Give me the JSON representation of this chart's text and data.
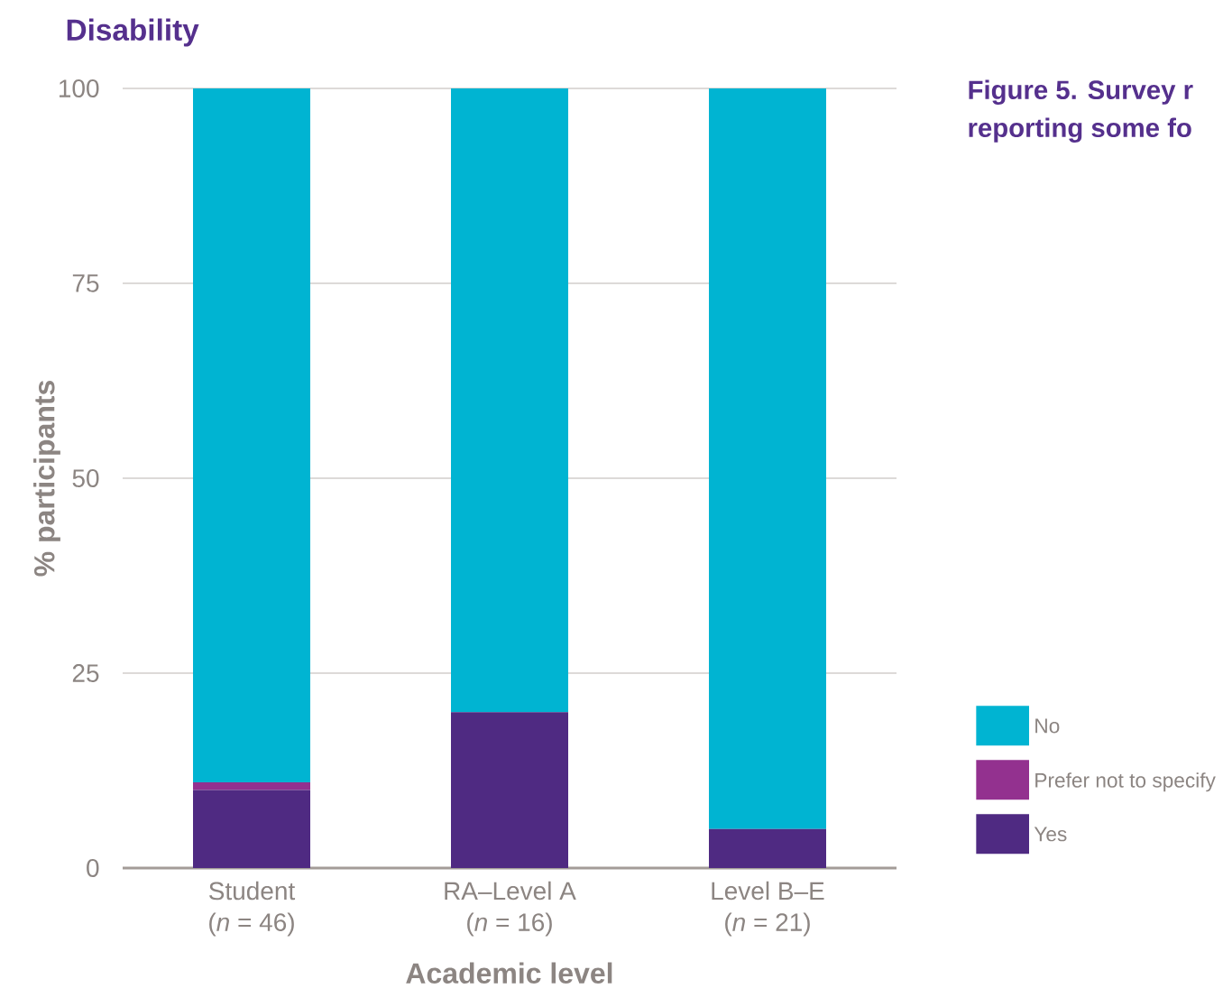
{
  "chart_data": {
    "type": "bar",
    "stacked": true,
    "title": "Disability",
    "xlabel": "Academic level",
    "ylabel": "% participants",
    "annotations": [
      "Figure 5.  Survey r",
      "reporting some fo"
    ],
    "categories": [
      "Student\n(*n* = 46)",
      "RA–Level A\n(*n* = 16)",
      "Level B–E\n(*n* = 21)"
    ],
    "series": [
      {
        "name": "Yes",
        "color": "#4f2a82",
        "values": [
          10,
          20,
          5
        ]
      },
      {
        "name": "Prefer not to specify",
        "color": "#93318f",
        "values": [
          1,
          0,
          0
        ]
      },
      {
        "name": "No",
        "color": "#00b4d2",
        "values": [
          89,
          80,
          95
        ]
      }
    ],
    "ylim": [
      0,
      100
    ],
    "yticks": [
      0,
      25,
      50,
      75,
      100
    ],
    "grid": "y",
    "legend": "right"
  }
}
